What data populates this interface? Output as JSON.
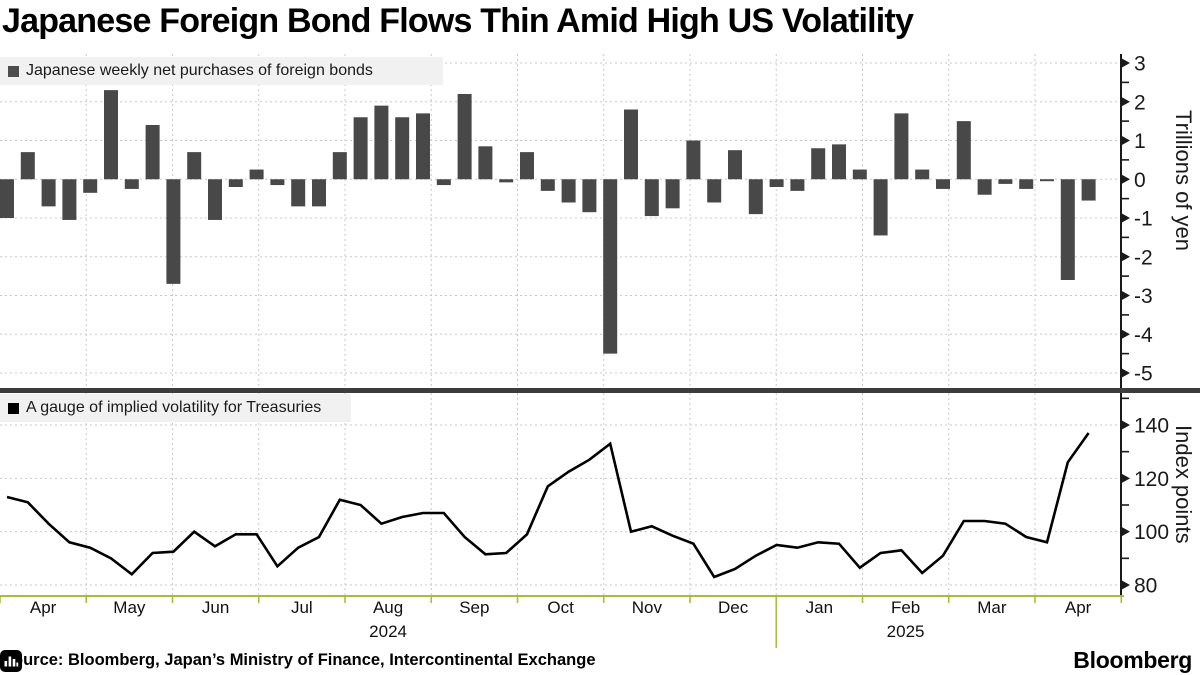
{
  "title": "Japanese Foreign Bond Flows Thin Amid High US Volatility",
  "source": "Source: Bloomberg, Japan’s Ministry of Finance, Intercontinental Exchange",
  "branding": {
    "wordmark": "Bloomberg"
  },
  "colors": {
    "bar": "#484848",
    "line": "#000000",
    "grid": "#c8c8c8",
    "axis": "#1a1a1a",
    "x_axis_green": "#a9bd3c",
    "legend_bg": "#f1f1f1",
    "divider": "#3c3c3c"
  },
  "x_axis": {
    "months": [
      "Apr",
      "May",
      "Jun",
      "Jul",
      "Aug",
      "Sep",
      "Oct",
      "Nov",
      "Dec",
      "Jan",
      "Feb",
      "Mar",
      "Apr"
    ],
    "years": [
      {
        "label": "2024",
        "month_index": 4
      },
      {
        "label": "2025",
        "month_index": 10
      }
    ],
    "year_divider_after_boundary": 9
  },
  "chart_data": [
    {
      "type": "bar",
      "name": "Japanese weekly net purchases of foreign bonds",
      "axis_title": "Trillions of yen",
      "ylabel": "Trillions of yen",
      "x_unit": "week (Apr 2024 - Apr 2025)",
      "ylim": [
        -5.3,
        3.4
      ],
      "yticks": [
        3,
        2,
        1,
        0,
        -1,
        -2,
        -3,
        -4,
        -5
      ],
      "minor_ytick_step": 0.5,
      "grid": true,
      "values": [
        -1.0,
        0.7,
        -0.7,
        -1.05,
        -0.35,
        2.3,
        -0.25,
        1.4,
        -2.7,
        0.7,
        -1.05,
        -0.2,
        0.25,
        -0.15,
        -0.7,
        -0.7,
        0.7,
        1.6,
        1.9,
        1.6,
        1.7,
        -0.15,
        2.2,
        0.85,
        -0.08,
        0.7,
        -0.3,
        -0.6,
        -0.85,
        -4.5,
        1.8,
        -0.95,
        -0.75,
        1.0,
        -0.6,
        0.75,
        -0.9,
        -0.2,
        -0.3,
        0.8,
        0.9,
        0.25,
        -1.45,
        1.7,
        0.25,
        -0.25,
        1.5,
        -0.4,
        -0.12,
        -0.25,
        -0.05,
        -2.6,
        -0.55
      ]
    },
    {
      "type": "line",
      "name": "A gauge of implied volatility for Treasuries",
      "axis_title": "Index points",
      "ylabel": "Index points",
      "x_unit": "week (Apr 2024 - Apr 2025)",
      "ylim": [
        76,
        152
      ],
      "yticks": [
        140,
        120,
        100,
        80
      ],
      "minor_yticks": [
        150,
        130,
        110,
        90
      ],
      "grid": true,
      "values": [
        113,
        111,
        103,
        96,
        94,
        90,
        84,
        92,
        92.5,
        100,
        94.5,
        99,
        99,
        87,
        94,
        98,
        112,
        110,
        103,
        105.5,
        107,
        107,
        98,
        91.5,
        92,
        99,
        117,
        122.5,
        127,
        133,
        100,
        102,
        98.5,
        95.5,
        83,
        86,
        91,
        95,
        94,
        96,
        95.5,
        86.5,
        92,
        93,
        84.5,
        91,
        104,
        104,
        103,
        98,
        96,
        126,
        137
      ]
    }
  ]
}
